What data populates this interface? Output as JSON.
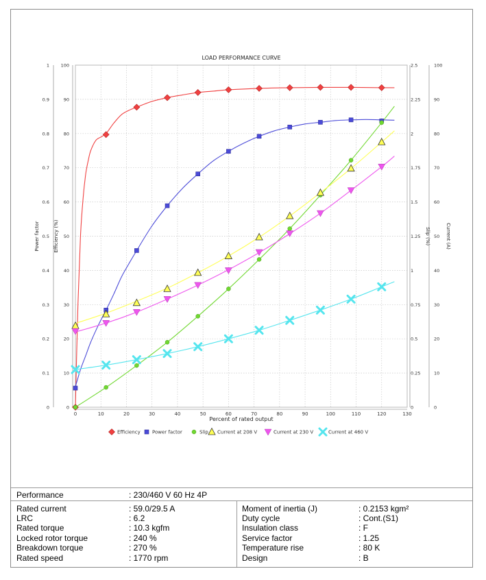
{
  "chart_data": {
    "type": "line",
    "title": "LOAD PERFORMANCE CURVE",
    "xlabel": "Percent of rated output",
    "xlim": [
      0,
      130
    ],
    "x_ticks": [
      "0",
      "10",
      "20",
      "30",
      "40",
      "50",
      "60",
      "70",
      "80",
      "90",
      "100",
      "110",
      "120",
      "130"
    ],
    "grid": true,
    "axes": {
      "power_factor": {
        "label": "Power factor",
        "range": [
          0,
          1
        ],
        "ticks": [
          "0",
          "0.1",
          "0.2",
          "0.3",
          "0.4",
          "0.5",
          "0.6",
          "0.7",
          "0.8",
          "0.9",
          "1"
        ]
      },
      "efficiency": {
        "label": "Efficiency (%)",
        "range": [
          0,
          100
        ],
        "ticks": [
          "0",
          "10",
          "20",
          "30",
          "40",
          "50",
          "60",
          "70",
          "80",
          "90",
          "100"
        ]
      },
      "slip": {
        "label": "Slip (%)",
        "range": [
          0,
          2.5
        ],
        "ticks": [
          "0",
          "0.25",
          "0.5",
          "0.75",
          "1",
          "1.25",
          "1.5",
          "1.75",
          "2",
          "2.25",
          "2.5"
        ]
      },
      "current": {
        "label": "Current (A)",
        "range": [
          0,
          100
        ],
        "ticks": [
          "0",
          "10",
          "20",
          "30",
          "40",
          "50",
          "60",
          "70",
          "80",
          "90",
          "100"
        ]
      }
    },
    "legend_position": "bottom",
    "series": [
      {
        "name": "Efficiency",
        "axis": "efficiency",
        "color": "#f04040",
        "marker": "diamond",
        "x": [
          0,
          12,
          24,
          36,
          48,
          60,
          72,
          84,
          96,
          108,
          120
        ],
        "y": [
          0,
          79.7,
          87.7,
          90.5,
          92.0,
          92.8,
          93.2,
          93.4,
          93.5,
          93.5,
          93.4
        ],
        "curve": [
          [
            0,
            0
          ],
          [
            1,
            30
          ],
          [
            2,
            50
          ],
          [
            3,
            61
          ],
          [
            4,
            68
          ],
          [
            5,
            72
          ],
          [
            6,
            75
          ],
          [
            8,
            78
          ],
          [
            10,
            79
          ],
          [
            12,
            80
          ],
          [
            15,
            83
          ],
          [
            18,
            85.5
          ],
          [
            21,
            86.8
          ],
          [
            24,
            87.7
          ],
          [
            30,
            89.4
          ],
          [
            36,
            90.5
          ],
          [
            42,
            91.3
          ],
          [
            48,
            92.0
          ],
          [
            54,
            92.4
          ],
          [
            60,
            92.8
          ],
          [
            72,
            93.2
          ],
          [
            84,
            93.4
          ],
          [
            96,
            93.5
          ],
          [
            108,
            93.5
          ],
          [
            120,
            93.4
          ],
          [
            125,
            93.4
          ]
        ]
      },
      {
        "name": "Power factor",
        "axis": "power_factor",
        "color": "#4a4ad8",
        "marker": "square",
        "x": [
          0,
          12,
          24,
          36,
          48,
          60,
          72,
          84,
          96,
          108,
          120
        ],
        "y": [
          0.056,
          0.284,
          0.458,
          0.589,
          0.682,
          0.748,
          0.792,
          0.819,
          0.833,
          0.84,
          0.837
        ],
        "curve": [
          [
            0,
            0.06
          ],
          [
            2,
            0.11
          ],
          [
            4,
            0.15
          ],
          [
            6,
            0.19
          ],
          [
            9,
            0.24
          ],
          [
            12,
            0.284
          ],
          [
            15,
            0.33
          ],
          [
            18,
            0.38
          ],
          [
            21,
            0.42
          ],
          [
            24,
            0.458
          ],
          [
            30,
            0.53
          ],
          [
            36,
            0.589
          ],
          [
            42,
            0.64
          ],
          [
            48,
            0.682
          ],
          [
            54,
            0.72
          ],
          [
            60,
            0.748
          ],
          [
            66,
            0.772
          ],
          [
            72,
            0.792
          ],
          [
            78,
            0.808
          ],
          [
            84,
            0.819
          ],
          [
            90,
            0.828
          ],
          [
            96,
            0.833
          ],
          [
            102,
            0.838
          ],
          [
            108,
            0.84
          ],
          [
            114,
            0.841
          ],
          [
            120,
            0.84
          ],
          [
            125,
            0.839
          ]
        ]
      },
      {
        "name": "Slip",
        "axis": "slip",
        "color": "#70d830",
        "marker": "circle",
        "x": [
          0,
          12,
          24,
          36,
          48,
          60,
          72,
          84,
          96,
          108,
          120
        ],
        "y": [
          0.0,
          0.145,
          0.305,
          0.475,
          0.665,
          0.865,
          1.08,
          1.305,
          1.55,
          1.805,
          2.08
        ],
        "curve": [
          [
            0,
            0.0
          ],
          [
            12,
            0.145
          ],
          [
            24,
            0.305
          ],
          [
            36,
            0.475
          ],
          [
            48,
            0.665
          ],
          [
            60,
            0.865
          ],
          [
            72,
            1.08
          ],
          [
            84,
            1.305
          ],
          [
            96,
            1.55
          ],
          [
            108,
            1.805
          ],
          [
            120,
            2.08
          ],
          [
            125,
            2.2
          ]
        ]
      },
      {
        "name": "Current at 208 V",
        "axis": "current",
        "color": "#ffff55",
        "marker": "triangle",
        "x": [
          0,
          12,
          24,
          36,
          48,
          60,
          72,
          84,
          96,
          108,
          120
        ],
        "y": [
          23.8,
          27.2,
          30.5,
          34.6,
          39.3,
          44.2,
          49.7,
          55.9,
          62.7,
          69.8,
          77.5
        ],
        "curve": [
          [
            0,
            24.5
          ],
          [
            12,
            27.5
          ],
          [
            24,
            31
          ],
          [
            36,
            34.8
          ],
          [
            48,
            39.3
          ],
          [
            60,
            44.2
          ],
          [
            72,
            49.7
          ],
          [
            84,
            55.9
          ],
          [
            96,
            62.7
          ],
          [
            108,
            69.8
          ],
          [
            120,
            77.5
          ],
          [
            125,
            80.8
          ]
        ]
      },
      {
        "name": "Current at 230 V",
        "axis": "current",
        "color": "#ee55ee",
        "marker": "triangle-down",
        "x": [
          0,
          12,
          24,
          36,
          48,
          60,
          72,
          84,
          96,
          108,
          120
        ],
        "y": [
          22.2,
          24.6,
          27.8,
          31.6,
          35.7,
          40.0,
          45.3,
          50.8,
          56.7,
          63.4,
          70.3
        ],
        "curve": [
          [
            0,
            22
          ],
          [
            12,
            24.6
          ],
          [
            24,
            27.8
          ],
          [
            36,
            31.6
          ],
          [
            48,
            35.7
          ],
          [
            60,
            40.2
          ],
          [
            72,
            45.2
          ],
          [
            84,
            50.7
          ],
          [
            96,
            56.7
          ],
          [
            108,
            63.4
          ],
          [
            120,
            70.3
          ],
          [
            125,
            73.4
          ]
        ]
      },
      {
        "name": "Current at 460 V",
        "axis": "current",
        "color": "#55e5ee",
        "marker": "x",
        "x": [
          0,
          12,
          24,
          36,
          48,
          60,
          72,
          84,
          96,
          108,
          120
        ],
        "y": [
          11.0,
          12.3,
          13.9,
          15.7,
          17.7,
          20.0,
          22.5,
          25.4,
          28.4,
          31.6,
          35.2
        ],
        "curve": [
          [
            0,
            11
          ],
          [
            12,
            12.3
          ],
          [
            24,
            13.9
          ],
          [
            36,
            15.7
          ],
          [
            48,
            17.7
          ],
          [
            60,
            20.0
          ],
          [
            72,
            22.5
          ],
          [
            84,
            25.4
          ],
          [
            96,
            28.4
          ],
          [
            108,
            31.6
          ],
          [
            120,
            35.2
          ],
          [
            125,
            36.7
          ]
        ]
      }
    ]
  },
  "specs": {
    "performance": {
      "label": "Performance",
      "value": ": 230/460 V 60 Hz 4P"
    },
    "left": [
      {
        "label": "Rated current",
        "value": ": 59.0/29.5 A"
      },
      {
        "label": "LRC",
        "value": ": 6.2"
      },
      {
        "label": "Rated torque",
        "value": ": 10.3 kgfm"
      },
      {
        "label": "Locked rotor torque",
        "value": ": 240 %"
      },
      {
        "label": "Breakdown torque",
        "value": ": 270 %"
      },
      {
        "label": "Rated speed",
        "value": ": 1770 rpm"
      }
    ],
    "right": [
      {
        "label": "Moment of inertia (J)",
        "value": ": 0.2153 kgm²"
      },
      {
        "label": "Duty cycle",
        "value": ": Cont.(S1)"
      },
      {
        "label": "Insulation class",
        "value": ": F"
      },
      {
        "label": "Service factor",
        "value": ": 1.25"
      },
      {
        "label": "Temperature rise",
        "value": ": 80 K"
      },
      {
        "label": "Design",
        "value": ": B"
      }
    ]
  }
}
